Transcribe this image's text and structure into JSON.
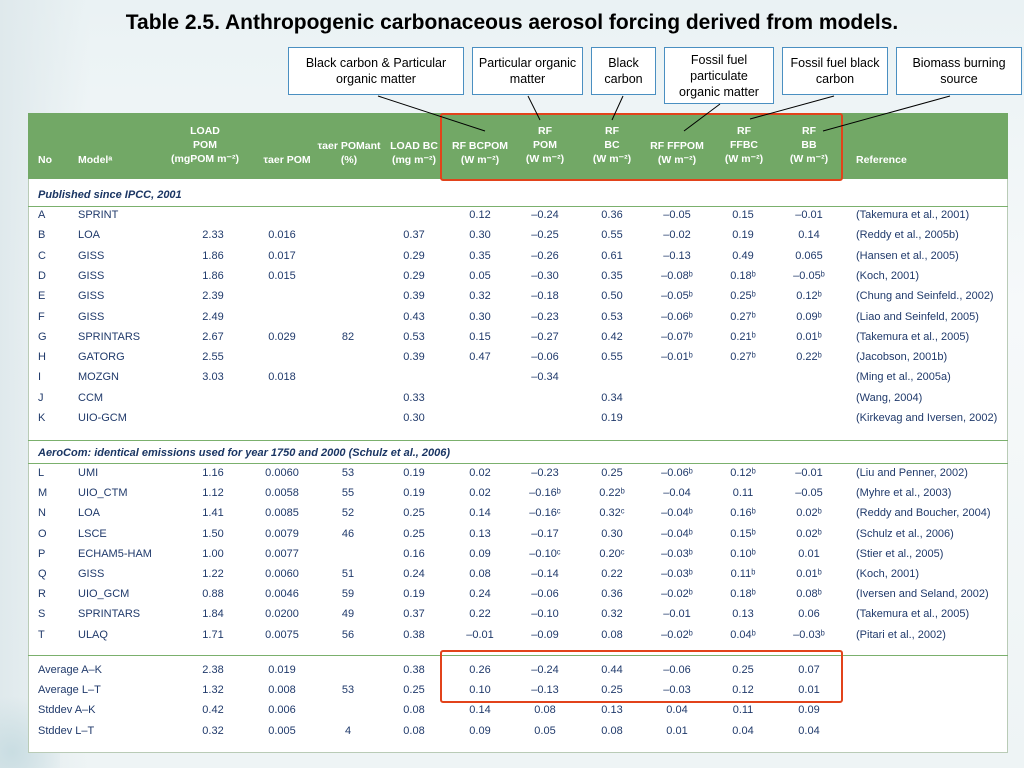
{
  "title": "Table 2.5. Anthropogenic carbonaceous aerosol forcing derived from models.",
  "callouts": [
    {
      "label": "Black carbon & Particular organic matter"
    },
    {
      "label": "Particular organic matter"
    },
    {
      "label": "Black carbon"
    },
    {
      "label": "Fossil fuel particulate organic matter"
    },
    {
      "label": "Fossil fuel black carbon"
    },
    {
      "label": "Biomass burning source"
    }
  ],
  "headers": {
    "no": "No",
    "model": "Modelᵃ",
    "load_pom": "LOAD\nPOM\n(mgPOM m⁻²)",
    "tau_pom": "τaer POM",
    "tau_pom_ant": "τaer POMant\n(%)",
    "load_bc": "LOAD BC\n(mg m⁻²)",
    "rf_bcpom": "RF BCPOM\n(W m⁻²)",
    "rf_pom": "RF\nPOM\n(W m⁻²)",
    "rf_bc": "RF\nBC\n(W m⁻²)",
    "rf_ffpom": "RF FFPOM\n(W m⁻²)",
    "rf_ffbc": "RF\nFFBC\n(W m⁻²)",
    "rf_bb": "RF\nBB\n(W m⁻²)",
    "reference": "Reference"
  },
  "section1": "Published since IPCC, 2001",
  "section2": "AeroCom: identical emissions used for year 1750 and 2000 (Schulz et al., 2006)",
  "rows1": [
    [
      "A",
      "SPRINT",
      "",
      "",
      "",
      "",
      "0.12",
      "–0.24",
      "0.36",
      "–0.05",
      "0.15",
      "–0.01",
      "(Takemura et al., 2001)"
    ],
    [
      "B",
      "LOA",
      "2.33",
      "0.016",
      "",
      "0.37",
      "0.30",
      "–0.25",
      "0.55",
      "–0.02",
      "0.19",
      "0.14",
      "(Reddy et al., 2005b)"
    ],
    [
      "C",
      "GISS",
      "1.86",
      "0.017",
      "",
      "0.29",
      "0.35",
      "–0.26",
      "0.61",
      "–0.13",
      "0.49",
      "0.065",
      "(Hansen et al., 2005)"
    ],
    [
      "D",
      "GISS",
      "1.86",
      "0.015",
      "",
      "0.29",
      "0.05",
      "–0.30",
      "0.35",
      "–0.08ᵇ",
      "0.18ᵇ",
      "–0.05ᵇ",
      "(Koch, 2001)"
    ],
    [
      "E",
      "GISS",
      "2.39",
      "",
      "",
      "0.39",
      "0.32",
      "–0.18",
      "0.50",
      "–0.05ᵇ",
      "0.25ᵇ",
      "0.12ᵇ",
      "(Chung and Seinfeld., 2002)"
    ],
    [
      "F",
      "GISS",
      "2.49",
      "",
      "",
      "0.43",
      "0.30",
      "–0.23",
      "0.53",
      "–0.06ᵇ",
      "0.27ᵇ",
      "0.09ᵇ",
      "(Liao and Seinfeld, 2005)"
    ],
    [
      "G",
      "SPRINTARS",
      "2.67",
      "0.029",
      "82",
      "0.53",
      "0.15",
      "–0.27",
      "0.42",
      "–0.07ᵇ",
      "0.21ᵇ",
      "0.01ᵇ",
      "(Takemura et al., 2005)"
    ],
    [
      "H",
      "GATORG",
      "2.55",
      "",
      "",
      "0.39",
      "0.47",
      "–0.06",
      "0.55",
      "–0.01ᵇ",
      "0.27ᵇ",
      "0.22ᵇ",
      "(Jacobson, 2001b)"
    ],
    [
      "I",
      "MOZGN",
      "3.03",
      "0.018",
      "",
      "",
      "",
      "–0.34",
      "",
      "",
      "",
      "",
      "(Ming et al., 2005a)"
    ],
    [
      "J",
      "CCM",
      "",
      "",
      "",
      "0.33",
      "",
      "",
      "0.34",
      "",
      "",
      "",
      "(Wang, 2004)"
    ],
    [
      "K",
      "UIO-GCM",
      "",
      "",
      "",
      "0.30",
      "",
      "",
      "0.19",
      "",
      "",
      "",
      "(Kirkevag and Iversen, 2002)"
    ]
  ],
  "rows2": [
    [
      "L",
      "UMI",
      "1.16",
      "0.0060",
      "53",
      "0.19",
      "0.02",
      "–0.23",
      "0.25",
      "–0.06ᵇ",
      "0.12ᵇ",
      "–0.01",
      "(Liu and Penner, 2002)"
    ],
    [
      "M",
      "UIO_CTM",
      "1.12",
      "0.0058",
      "55",
      "0.19",
      "0.02",
      "–0.16ᵇ",
      "0.22ᵇ",
      "–0.04",
      "0.11",
      "–0.05",
      "(Myhre et al., 2003)"
    ],
    [
      "N",
      "LOA",
      "1.41",
      "0.0085",
      "52",
      "0.25",
      "0.14",
      "–0.16ᶜ",
      "0.32ᶜ",
      "–0.04ᵇ",
      "0.16ᵇ",
      "0.02ᵇ",
      "(Reddy and Boucher, 2004)"
    ],
    [
      "O",
      "LSCE",
      "1.50",
      "0.0079",
      "46",
      "0.25",
      "0.13",
      "–0.17",
      "0.30",
      "–0.04ᵇ",
      "0.15ᵇ",
      "0.02ᵇ",
      "(Schulz et al., 2006)"
    ],
    [
      "P",
      "ECHAM5-HAM",
      "1.00",
      "0.0077",
      "",
      "0.16",
      "0.09",
      "–0.10ᶜ",
      "0.20ᶜ",
      "–0.03ᵇ",
      "0.10ᵇ",
      "0.01",
      "(Stier et al., 2005)"
    ],
    [
      "Q",
      "GISS",
      "1.22",
      "0.0060",
      "51",
      "0.24",
      "0.08",
      "–0.14",
      "0.22",
      "–0.03ᵇ",
      "0.11ᵇ",
      "0.01ᵇ",
      "(Koch, 2001)"
    ],
    [
      "R",
      "UIO_GCM",
      "0.88",
      "0.0046",
      "59",
      "0.19",
      "0.24",
      "–0.06",
      "0.36",
      "–0.02ᵇ",
      "0.18ᵇ",
      "0.08ᵇ",
      "(Iversen and Seland, 2002)"
    ],
    [
      "S",
      "SPRINTARS",
      "1.84",
      "0.0200",
      "49",
      "0.37",
      "0.22",
      "–0.10",
      "0.32",
      "–0.01",
      "0.13",
      "0.06",
      "(Takemura et al., 2005)"
    ],
    [
      "T",
      "ULAQ",
      "1.71",
      "0.0075",
      "56",
      "0.38",
      "–0.01",
      "–0.09",
      "0.08",
      "–0.02ᵇ",
      "0.04ᵇ",
      "–0.03ᵇ",
      "(Pitari et al., 2002)"
    ]
  ],
  "summary": [
    [
      "Average A–K",
      "",
      "2.38",
      "0.019",
      "",
      "0.38",
      "0.26",
      "–0.24",
      "0.44",
      "–0.06",
      "0.25",
      "0.07",
      ""
    ],
    [
      "Average L–T",
      "",
      "1.32",
      "0.008",
      "53",
      "0.25",
      "0.10",
      "–0.13",
      "0.25",
      "–0.03",
      "0.12",
      "0.01",
      ""
    ],
    [
      "Stddev A–K",
      "",
      "0.42",
      "0.006",
      "",
      "0.08",
      "0.14",
      "0.08",
      "0.13",
      "0.04",
      "0.11",
      "0.09",
      ""
    ],
    [
      "Stddev L–T",
      "",
      "0.32",
      "0.005",
      "4",
      "0.08",
      "0.09",
      "0.05",
      "0.08",
      "0.01",
      "0.04",
      "0.04",
      ""
    ]
  ],
  "colors": {
    "header_green": "#72a866",
    "highlight": "#e2431b",
    "callout_border": "#4a8fc1",
    "text": "#203a6b"
  }
}
